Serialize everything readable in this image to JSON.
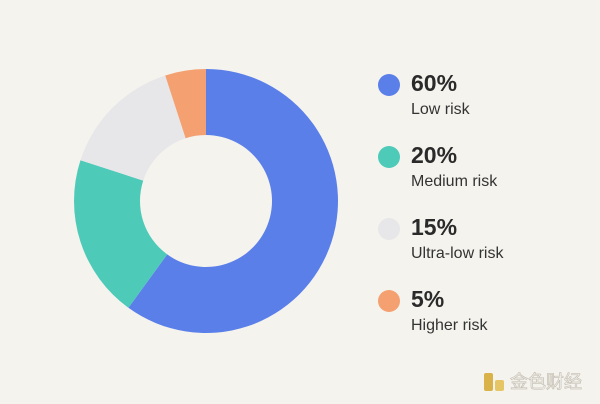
{
  "chart_data": {
    "type": "donut",
    "categories": [
      "Low risk",
      "Medium risk",
      "Ultra-low risk",
      "Higher risk"
    ],
    "values": [
      60,
      20,
      15,
      5
    ],
    "value_labels": [
      "60%",
      "20%",
      "15%",
      "5%"
    ],
    "colors": [
      "#5a7fe9",
      "#4ecab9",
      "#e7e7e9",
      "#f5a070"
    ]
  },
  "watermark": "金色财经"
}
